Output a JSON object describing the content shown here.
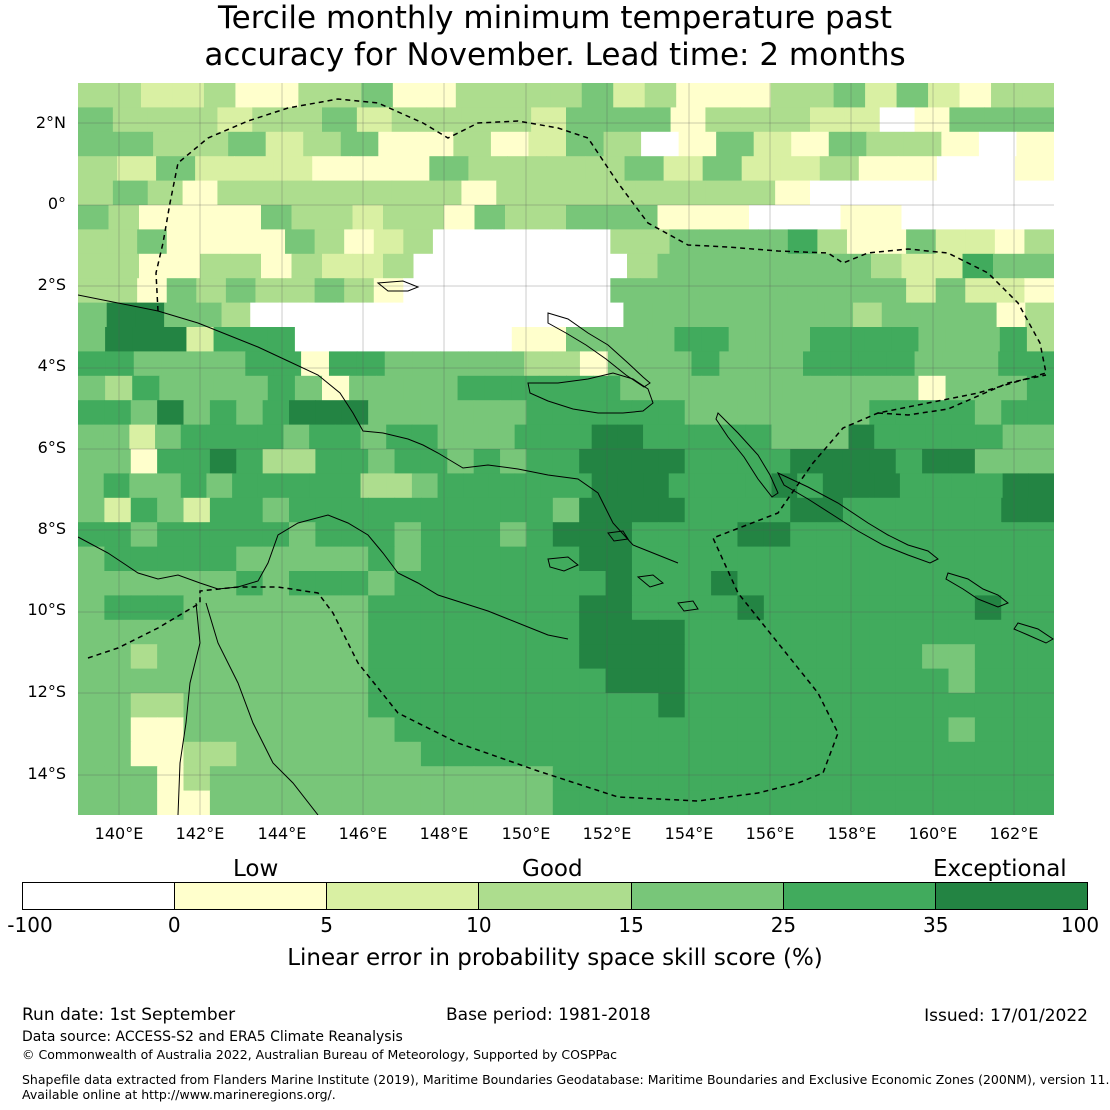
{
  "title": {
    "line1": "Tercile monthly minimum temperature past",
    "line2": "accuracy for November. Lead time: 2 months"
  },
  "map": {
    "lat_ticks": [
      "2°N",
      "0°",
      "2°S",
      "4°S",
      "6°S",
      "8°S",
      "10°S",
      "12°S",
      "14°S"
    ],
    "lon_ticks": [
      "140°E",
      "142°E",
      "144°E",
      "146°E",
      "148°E",
      "150°E",
      "152°E",
      "154°E",
      "156°E",
      "158°E",
      "160°E",
      "162°E"
    ],
    "colors": {
      "neg": "#ffffff",
      "c0_5": "#ffffcc",
      "c5_10": "#d9f0a3",
      "c10_15": "#addd8e",
      "c15_25": "#78c679",
      "c25_35": "#41ab5d",
      "c35_100": "#238443"
    },
    "grid_rows": [
      "3322A11AAB11AAAAB2A11133B2B21AA",
      "43332AAB2AAAA2BBB1AAA2201BBB",
      "5433B2AB11A12BA01B21BAA101",
      "A2B222111BAAAAB2B22A11001",
      "3BA1AAAAAAA1AAAAAAAA10000000",
      "BA1111BAA2AA1BAA4BB1110001100000",
      "AAB1111BA12A000000AABBBBCA11B221A",
      "AA11AA1A22A0000000ABBBBB44A22CBB",
      "AA1BABAABA10000000BBBBBBBBBB2B221",
      "4DDBBA0000000000000BB4BBBBB3BBBB1A",
      "5DDD2CCC0000000011BBBBCCBBBCCCCBBBC3",
      "CCBBBBCC1CCBBBBBAA1BBBCBBBCCCCBBBCC",
      "B3CBBBBCB1BBBBCCCCCCBBBBBBBBBBB1BBBC",
      "CCBDBCBCDDDBBBBBBCCCCCCBBBBBBBCCCCBCC",
      "BB2BCCCCBCCBCCBBBCCCDDCCCCCBBBDCCCCCBB",
      "BB1CCDCAACCBCCBCBCCDDDDCCCCDDDDCDDBBB",
      "BCBBCBCCCCCAABCCCCCCDDDCCCCDCDDDCCCCDD",
      "B2CB2CCBCCCCCCCCCCBDDDDCCCCDDCCCCCCDD",
      "CCBCCCCCBCCCBCCCBCDDDCCCCDDCCCCCCCCCC",
      "BCCCCCBBBBBCBCCCCCCDDCCCCCCCCCCCCCCCC",
      "BBBBBBCBCCCBCCCCCCCCDCCCDCCCCCCCCCCCC",
      "BCCCBBBBBBBCCCCCCCCDDCCCCDCCCCCCCCDCC",
      "BBBBBBBBBBBCCCCCCCCDDDDCCCCCCCCCCCCCC",
      "BBABBBBBBBBCCCCCCCCDDDDCCCCCCCCCBBCCC",
      "BBBBBBBBBBBCCCCCCCCCDDDCCCCCCCCCCBCCC",
      "BBAABBBBBBBCCCCCCCCCCCDCCCCCCCCCCCCCC",
      "BB11BBBBBBBBCCCCCCCCCCCCCCCCCCCCCBCCC",
      "BB11AABBBBBBBCCCCCCCCCCCCCCCCCCCCCCCC",
      "BBB1ABBBBBBBBBBBBBCCCCCCCCCCCCCCCCCCC",
      "BBB11BBBBBBBBBBBBBCCCCCCCCCCCCCCCCCCC"
    ]
  },
  "colorbar": {
    "categories": [
      "Low",
      "Good",
      "Exceptional"
    ],
    "ticks": [
      "-100",
      "0",
      "5",
      "10",
      "15",
      "25",
      "35",
      "100"
    ],
    "segment_colors": [
      "#ffffff",
      "#ffffcc",
      "#d9f0a3",
      "#addd8e",
      "#78c679",
      "#41ab5d",
      "#238443"
    ],
    "label": "Linear error in probability space skill score (%)"
  },
  "footer": {
    "run_date": "Run date: 1st September",
    "base_period": "Base period: 1981-2018",
    "issued": "Issued: 17/01/2022",
    "data_source": "Data source: ACCESS-S2 and ERA5 Climate Reanalysis",
    "copyright": "© Commonwealth of Australia 2022, Australian Bureau of Meteorology, Supported by COSPPac",
    "shapefile_line1": "Shapefile data extracted from Flanders Marine Institute (2019), Maritime Boundaries Geodatabase: Maritime Boundaries and Exclusive Economic Zones (200NM), version 11.",
    "shapefile_line2": "Available online at http://www.marineregions.org/."
  }
}
